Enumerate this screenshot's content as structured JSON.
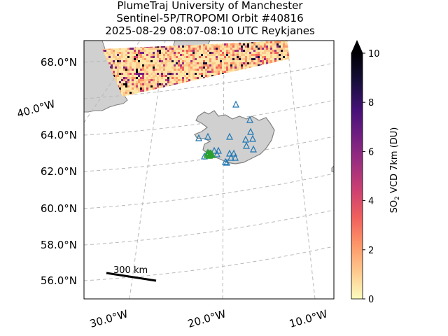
{
  "title": {
    "line1": "PlumeTraj    University of Manchester",
    "line2": "Sentinel-5P/TROPOMI Orbit #40816",
    "line3": "2025-08-29   08:07-08:10 UTC   Reykjanes"
  },
  "axes": {
    "lat_labels": [
      "68.0°N",
      "64.0°N",
      "62.0°N",
      "60.0°N",
      "58.0°N",
      "56.0°N"
    ],
    "lon_labels_bottom": [
      "30.0°W",
      "20.0°W",
      "10.0°W"
    ],
    "lon_label_left": "40.0°W"
  },
  "scale_bar": {
    "label": "300 km"
  },
  "colorbar": {
    "label_prefix": "SO",
    "label_sub": "2",
    "label_suffix": " VCD 7km (DU)",
    "ticks": [
      "0",
      "2",
      "4",
      "6",
      "8",
      "10"
    ],
    "range": [
      0,
      10
    ],
    "extend": "max",
    "colormap": "magma_r",
    "colors": [
      "#fcfdbf",
      "#fec98d",
      "#fd9668",
      "#f1605d",
      "#cd4071",
      "#9e2f7f",
      "#721f81",
      "#451077",
      "#180f3d",
      "#000004"
    ]
  },
  "map_colors": {
    "land": "#d0d0d0",
    "coast": "#808080",
    "grid": "#b8b8b8",
    "volcano_markers": "#1f77b4",
    "plume_markers": "#2ca02c"
  },
  "markers": {
    "volcano_count": 22,
    "plume_source_count": 8
  }
}
